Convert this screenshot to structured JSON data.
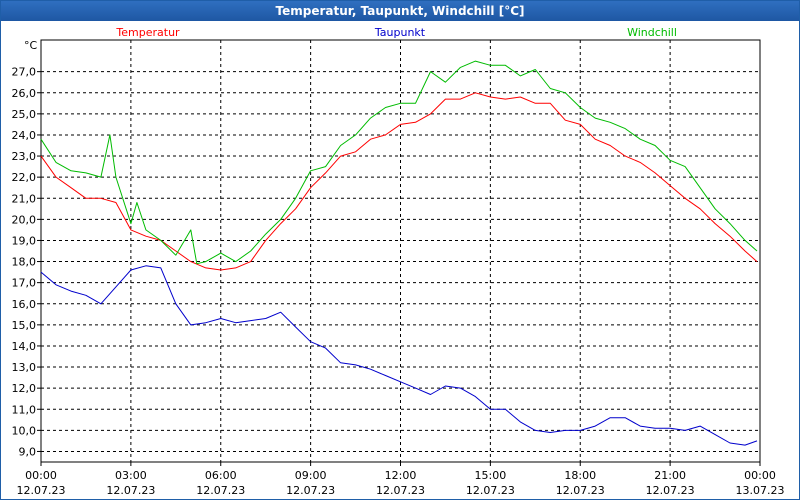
{
  "window": {
    "title": "Temperatur, Taupunkt, Windchill [°C]"
  },
  "chart_data": {
    "type": "line",
    "title": "Temperatur, Taupunkt, Windchill [°C]",
    "ylabel": "°C",
    "xlabel": "",
    "ylim": [
      8.5,
      28.5
    ],
    "xlim": [
      0,
      24
    ],
    "grid": true,
    "y_ticks": [
      "9,0",
      "10,0",
      "11,0",
      "12,0",
      "13,0",
      "14,0",
      "15,0",
      "16,0",
      "17,0",
      "18,0",
      "19,0",
      "20,0",
      "21,0",
      "22,0",
      "23,0",
      "24,0",
      "25,0",
      "26,0",
      "27,0"
    ],
    "x_ticks": [
      {
        "time": "00:00",
        "date": "12.07.23"
      },
      {
        "time": "03:00",
        "date": "12.07.23"
      },
      {
        "time": "06:00",
        "date": "12.07.23"
      },
      {
        "time": "09:00",
        "date": "12.07.23"
      },
      {
        "time": "12:00",
        "date": "12.07.23"
      },
      {
        "time": "15:00",
        "date": "12.07.23"
      },
      {
        "time": "18:00",
        "date": "12.07.23"
      },
      {
        "time": "21:00",
        "date": "12.07.23"
      },
      {
        "time": "00:00",
        "date": "13.07.23"
      }
    ],
    "series": [
      {
        "name": "Temperatur",
        "color": "#ff0000",
        "x": [
          0,
          0.5,
          1,
          1.5,
          2,
          2.5,
          3,
          3.5,
          4,
          4.5,
          5,
          5.5,
          6,
          6.5,
          7,
          7.5,
          8,
          8.5,
          9,
          9.5,
          10,
          10.5,
          11,
          11.5,
          12,
          12.5,
          13,
          13.5,
          14,
          14.5,
          15,
          15.5,
          16,
          16.5,
          17,
          17.5,
          18,
          18.5,
          19,
          19.5,
          20,
          20.5,
          21,
          21.5,
          22,
          22.5,
          23,
          23.5,
          23.9
        ],
        "values": [
          23.0,
          22.0,
          21.5,
          21.0,
          21.0,
          20.8,
          19.5,
          19.2,
          19.0,
          18.5,
          18.0,
          17.7,
          17.6,
          17.7,
          18.0,
          19.0,
          19.8,
          20.5,
          21.5,
          22.2,
          23.0,
          23.2,
          23.8,
          24.0,
          24.5,
          24.6,
          25.0,
          25.7,
          25.7,
          26.0,
          25.8,
          25.7,
          25.8,
          25.5,
          25.5,
          24.7,
          24.5,
          23.8,
          23.5,
          23.0,
          22.7,
          22.2,
          21.6,
          21.0,
          20.5,
          19.8,
          19.2,
          18.5,
          18.0
        ]
      },
      {
        "name": "Taupunkt",
        "color": "#0000cc",
        "x": [
          0,
          0.5,
          1,
          1.5,
          2,
          2.5,
          3,
          3.5,
          4,
          4.5,
          5,
          5.5,
          6,
          6.5,
          7,
          7.5,
          8,
          8.5,
          9,
          9.5,
          10,
          10.5,
          11,
          11.5,
          12,
          12.5,
          13,
          13.5,
          14,
          14.5,
          15,
          15.5,
          16,
          16.5,
          17,
          17.5,
          18,
          18.5,
          19,
          19.5,
          20,
          20.5,
          21,
          21.5,
          22,
          22.5,
          23,
          23.5,
          23.9
        ],
        "values": [
          17.5,
          16.9,
          16.6,
          16.4,
          16.0,
          16.8,
          17.6,
          17.8,
          17.7,
          16.0,
          15.0,
          15.1,
          15.3,
          15.1,
          15.2,
          15.3,
          15.6,
          14.9,
          14.2,
          13.9,
          13.2,
          13.1,
          12.9,
          12.6,
          12.3,
          12.0,
          11.7,
          12.1,
          12.0,
          11.6,
          11.0,
          11.0,
          10.4,
          10.0,
          9.9,
          10.0,
          10.0,
          10.2,
          10.6,
          10.6,
          10.2,
          10.1,
          10.1,
          10.0,
          10.2,
          9.8,
          9.4,
          9.3,
          9.5
        ]
      },
      {
        "name": "Windchill",
        "color": "#00bb00",
        "x": [
          0,
          0.5,
          1,
          1.5,
          2,
          2.3,
          2.5,
          3,
          3.2,
          3.5,
          4,
          4.5,
          5,
          5.2,
          5.5,
          6,
          6.5,
          7,
          7.5,
          8,
          8.5,
          9,
          9.5,
          10,
          10.5,
          11,
          11.5,
          12,
          12.5,
          13,
          13.5,
          14,
          14.5,
          15,
          15.5,
          16,
          16.5,
          17,
          17.5,
          18,
          18.5,
          19,
          19.5,
          20,
          20.5,
          21,
          21.5,
          22,
          22.5,
          23,
          23.5,
          23.9
        ],
        "values": [
          23.8,
          22.7,
          22.3,
          22.2,
          22.0,
          24.0,
          22.0,
          19.8,
          20.8,
          19.5,
          19.0,
          18.3,
          19.5,
          17.9,
          18.0,
          18.4,
          18.0,
          18.5,
          19.3,
          20.0,
          21.0,
          22.3,
          22.5,
          23.5,
          24.0,
          24.8,
          25.3,
          25.5,
          25.5,
          27.0,
          26.5,
          27.2,
          27.5,
          27.3,
          27.3,
          26.8,
          27.1,
          26.2,
          26.0,
          25.3,
          24.8,
          24.6,
          24.3,
          23.8,
          23.5,
          22.8,
          22.5,
          21.5,
          20.5,
          19.8,
          19.0,
          18.5
        ]
      }
    ]
  }
}
